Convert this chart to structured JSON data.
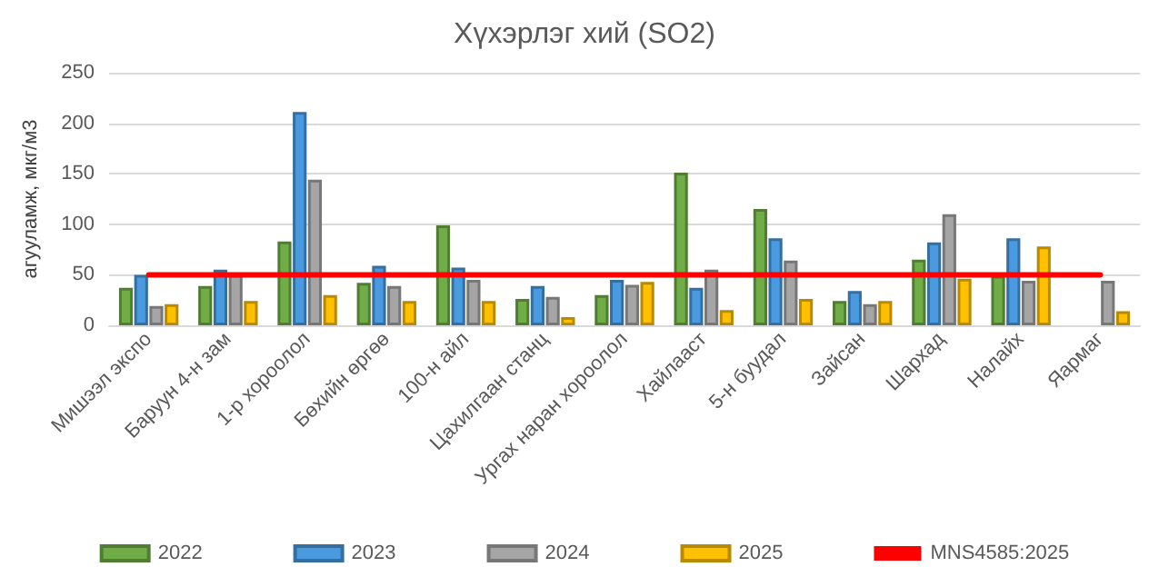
{
  "chart_data": {
    "type": "bar",
    "title": "Хүхэрлэг хий (SO2)",
    "ylabel": "агууламж, мкг/м3",
    "categories": [
      "Мишээл экспо",
      "Баруун 4-н зам",
      "1-р хороолол",
      "Бөхийн өргөө",
      "100-н айл",
      "Цахилгаан станц",
      "Ургах наран хороолол",
      "Хайлааст",
      "5-н буудал",
      "Зайсан",
      "Шархад",
      "Налайх",
      "Яармаг"
    ],
    "series": [
      {
        "name": "2022",
        "color": "#70ad47",
        "values": [
          37,
          39,
          83,
          42,
          99,
          26,
          30,
          151,
          115,
          24,
          65,
          49,
          null
        ]
      },
      {
        "name": "2023",
        "color": "#4a9ae0",
        "values": [
          50,
          55,
          211,
          59,
          57,
          39,
          45,
          37,
          86,
          34,
          82,
          86,
          null
        ]
      },
      {
        "name": "2024",
        "color": "#a5a5a5",
        "values": [
          19,
          50,
          144,
          39,
          45,
          28,
          40,
          55,
          64,
          21,
          110,
          44,
          44
        ]
      },
      {
        "name": "2025",
        "color": "#ffc000",
        "values": [
          21,
          24,
          30,
          24,
          24,
          8,
          43,
          15,
          26,
          24,
          46,
          78,
          14
        ]
      },
      {
        "name": "MNS4585:2025",
        "type": "line",
        "color": "#ff0000",
        "values": [
          50,
          50,
          50,
          50,
          50,
          50,
          50,
          50,
          50,
          50,
          50,
          50,
          50
        ]
      }
    ],
    "ylim": [
      0,
      250
    ],
    "yticks": [
      0,
      50,
      100,
      150,
      200,
      250
    ],
    "grid": "y",
    "legend": "bottom",
    "marker": "none"
  }
}
